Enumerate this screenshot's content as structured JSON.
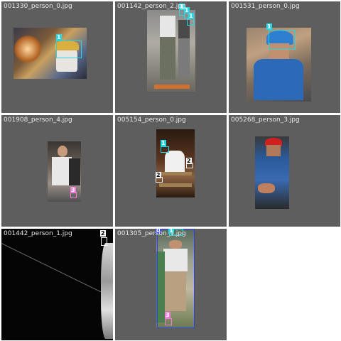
{
  "tiles": [
    {
      "filename": "001330_person_0.jpg",
      "labels": [
        "1"
      ]
    },
    {
      "filename": "001142_person_2.jpg",
      "labels": [
        "1",
        "1",
        "1"
      ]
    },
    {
      "filename": "001531_person_0.jpg",
      "labels": [
        "1"
      ]
    },
    {
      "filename": "001908_person_4.jpg",
      "labels": [
        "3"
      ]
    },
    {
      "filename": "005154_person_0.jpg",
      "labels": [
        "1",
        "2",
        "2"
      ]
    },
    {
      "filename": "005268_person_3.jpg",
      "labels": []
    },
    {
      "filename": "001442_person_1.jpg",
      "labels": [
        "2"
      ]
    },
    {
      "filename": "001305_person_1.jpg",
      "labels": [
        "0",
        "1",
        "3"
      ]
    }
  ],
  "colors": {
    "tile_bg": "#5e5e5e",
    "class_0": "#2f3fff",
    "class_1": "#25d7e4",
    "class_2": "#f5f5f5",
    "class_3": "#f07ad6"
  }
}
